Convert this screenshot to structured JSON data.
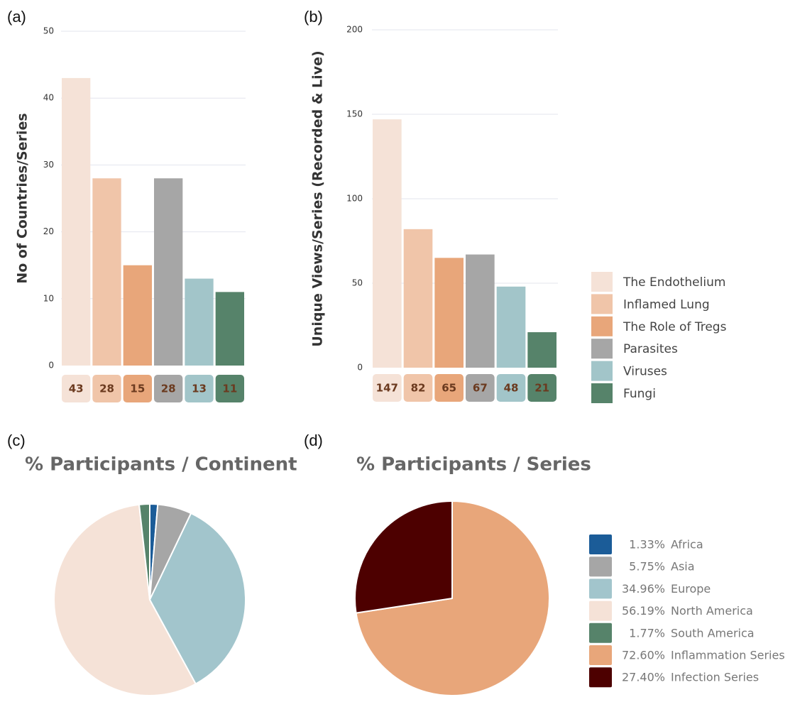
{
  "chart_data": [
    {
      "type": "bar",
      "panel": "(a)",
      "ylabel": "No of Countries/Series",
      "values": [
        43,
        28,
        15,
        28,
        13,
        11
      ],
      "ylim": [
        0,
        50
      ],
      "yticks": [
        0,
        10,
        20,
        30,
        40,
        50
      ],
      "grid": true
    },
    {
      "type": "bar",
      "panel": "(b)",
      "ylabel": "Unique Views/Series (Recorded & Live)",
      "values": [
        147,
        82,
        65,
        67,
        48,
        21
      ],
      "ylim": [
        0,
        200
      ],
      "yticks": [
        0,
        50,
        100,
        150,
        200
      ],
      "grid": true
    },
    {
      "type": "pie",
      "panel": "(c)",
      "title": "% Participants / Continent",
      "labels": [
        "Africa",
        "Asia",
        "Europe",
        "North America",
        "South America"
      ],
      "values": [
        1.33,
        5.75,
        34.96,
        56.19,
        1.77
      ],
      "value_labels": [
        "1.33%",
        "5.75%",
        "34.96%",
        "56.19%",
        "1.77%"
      ],
      "colors": [
        "#1b5c98",
        "#a6a6a6",
        "#a2c5cc",
        "#f5e2d7",
        "#56836a"
      ]
    },
    {
      "type": "pie",
      "panel": "(d)",
      "title": "% Participants / Series",
      "labels": [
        "Inflammation Series",
        "Infection Series"
      ],
      "values": [
        72.6,
        27.4
      ],
      "value_labels": [
        "72.60%",
        "27.40%"
      ],
      "colors": [
        "#e8a67a",
        "#4d0000"
      ]
    }
  ],
  "legend": {
    "names": [
      "The Endothelium",
      "Inflamed Lung",
      "The Role of Tregs",
      "Parasites",
      "Viruses",
      "Fungi"
    ],
    "colors": [
      "#f5e2d7",
      "#f0c5a9",
      "#e8a67a",
      "#a6a6a6",
      "#a2c5c9",
      "#56836a"
    ]
  }
}
